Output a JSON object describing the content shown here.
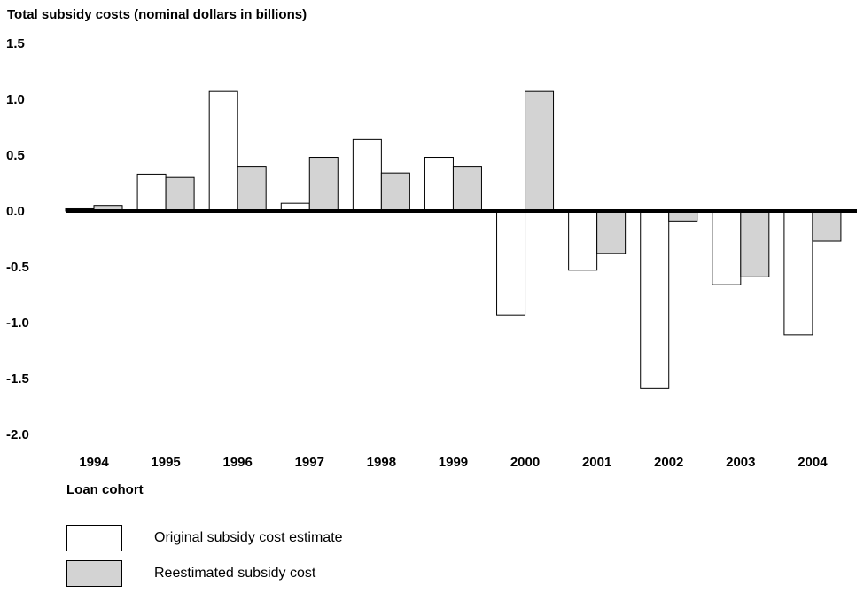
{
  "chart_data": {
    "type": "bar",
    "title": "Total subsidy costs (nominal dollars in billions)",
    "xlabel": "Loan cohort",
    "ylabel": "",
    "ylim": [
      -2.0,
      1.5
    ],
    "yticks": [
      "1.5",
      "1.0",
      "0.5",
      "0.0",
      "-0.5",
      "-1.0",
      "-1.5",
      "-2.0"
    ],
    "ytick_values": [
      1.5,
      1.0,
      0.5,
      0.0,
      -0.5,
      -1.0,
      -1.5,
      -2.0
    ],
    "grid": false,
    "categories": [
      "1994",
      "1995",
      "1996",
      "1997",
      "1998",
      "1999",
      "2000",
      "2001",
      "2002",
      "2003",
      "2004"
    ],
    "series": [
      {
        "name": "Original subsidy cost estimate",
        "color": "#ffffff",
        "values": [
          0.02,
          0.33,
          1.07,
          0.07,
          0.64,
          0.48,
          -0.93,
          -0.53,
          -1.59,
          -0.66,
          -1.11
        ]
      },
      {
        "name": "Reestimated subsidy cost",
        "color": "#d3d3d3",
        "values": [
          0.05,
          0.3,
          0.4,
          0.48,
          0.34,
          0.4,
          1.07,
          -0.38,
          -0.09,
          -0.59,
          -0.27
        ]
      }
    ],
    "legend_position": "bottom-left"
  }
}
